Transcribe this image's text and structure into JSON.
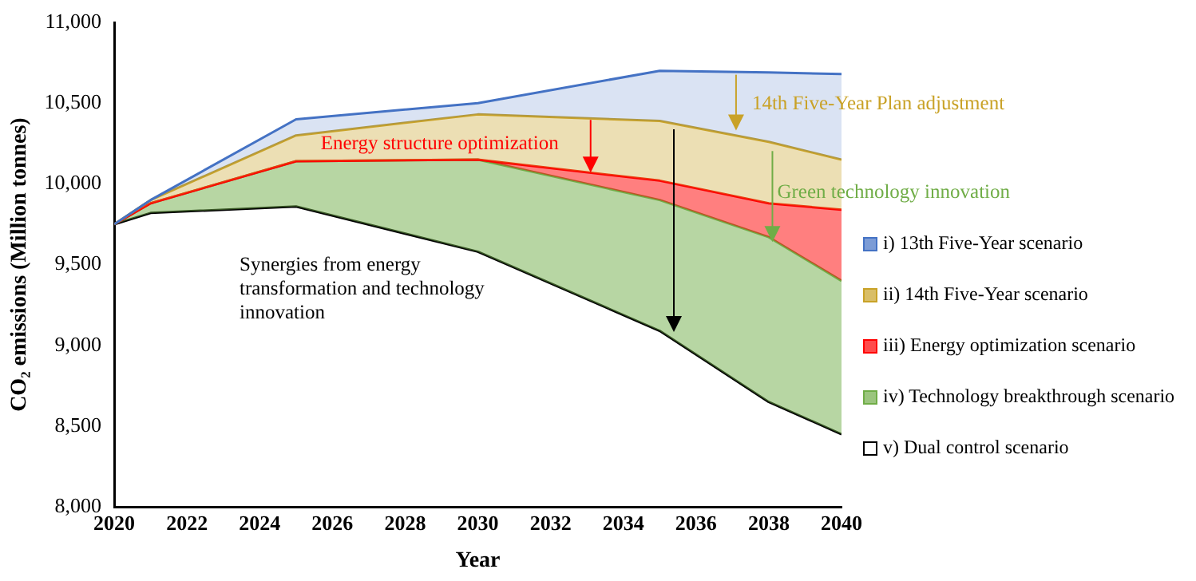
{
  "chart_data": {
    "type": "area",
    "xlabel": "Year",
    "ylabel": "CO₂ emissions (Million tonnes)",
    "x": [
      2020,
      2021,
      2025,
      2030,
      2035,
      2038,
      2040
    ],
    "series": [
      {
        "name": "i) 13th Five-Year scenario",
        "color": "#4472c4",
        "values": [
          9750,
          9900,
          10400,
          10500,
          10700,
          10690,
          10680
        ]
      },
      {
        "name": "ii) 14th Five-Year scenario",
        "color": "#c9a227",
        "values": [
          9750,
          9900,
          10300,
          10430,
          10390,
          10260,
          10150
        ]
      },
      {
        "name": "iii) Energy optimization scenario",
        "color": "#ff0000",
        "values": [
          9750,
          9880,
          10140,
          10150,
          10020,
          9880,
          9840
        ]
      },
      {
        "name": "iv) Technology breakthrough scenario",
        "color": "#70ad47",
        "values": [
          9750,
          9880,
          10140,
          10150,
          9900,
          9670,
          9400
        ]
      },
      {
        "name": "v) Dual control scenario",
        "type": "line",
        "color": "#000000",
        "values": [
          9750,
          9820,
          9860,
          9580,
          9090,
          8650,
          8450
        ]
      }
    ],
    "annotations": [
      {
        "text": "Energy structure optimization",
        "x": 2033.1,
        "y": 10070
      },
      {
        "text": "14th Five-Year Plan adjustment",
        "x": 2037.1,
        "y": 10330
      },
      {
        "text": "Green technology innovation",
        "x": 2038.1,
        "y": 9640
      },
      "Synergies from energy transformation and technology innovation"
    ],
    "xlim": [
      2020,
      2040
    ],
    "xticks": [
      2020,
      2022,
      2024,
      2026,
      2028,
      2030,
      2032,
      2034,
      2036,
      2038,
      2040
    ],
    "ylim": [
      8000,
      11000
    ],
    "yticks": [
      {
        "value": 8000,
        "label": "8,000"
      },
      {
        "value": 8500,
        "label": "8,500"
      },
      {
        "value": 9000,
        "label": "9,000"
      },
      {
        "value": 9500,
        "label": "9,500"
      },
      {
        "value": 10000,
        "label": "10,000"
      },
      {
        "value": 10500,
        "label": "10,500"
      },
      {
        "value": 11000,
        "label": "11,000"
      }
    ],
    "grid": false,
    "legend": "right",
    "marker": "none",
    "line_style": "solid"
  }
}
